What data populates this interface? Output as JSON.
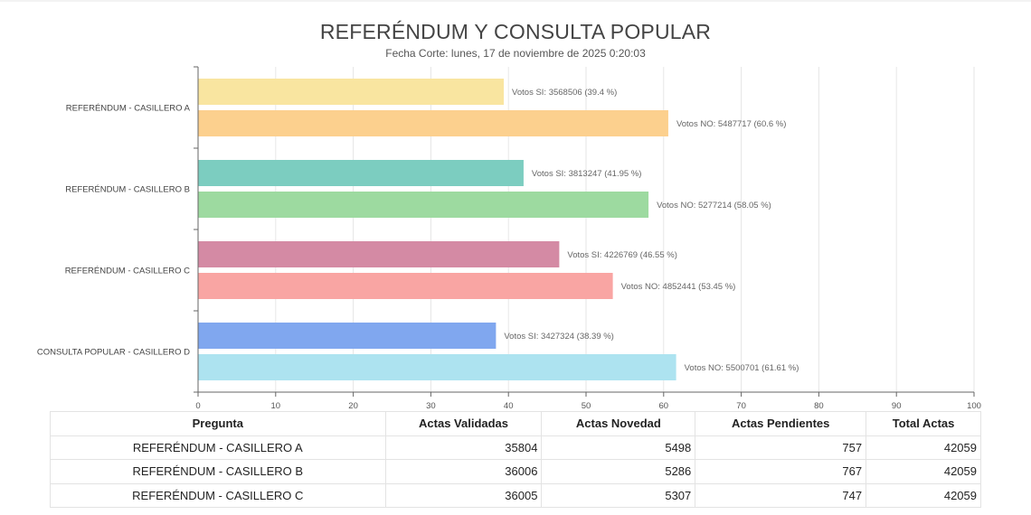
{
  "title": "REFERÉNDUM Y CONSULTA POPULAR",
  "subtitle": "Fecha Corte: lunes, 17 de noviembre de 2025 0:20:03",
  "colors": {
    "si": [
      "#f9e5a0",
      "#7ccdc0",
      "#d48aa4",
      "#80a7ef"
    ],
    "no": [
      "#fcd08e",
      "#9ddaa0",
      "#f9a5a3",
      "#ade3f0"
    ],
    "grid": "#e6e6e6",
    "axis": "#666666",
    "label": "#666666"
  },
  "chart_data": {
    "type": "bar",
    "orientation": "horizontal",
    "categories": [
      "REFERÉNDUM - CASILLERO A",
      "REFERÉNDUM - CASILLERO B",
      "REFERÉNDUM - CASILLERO C",
      "CONSULTA POPULAR - CASILLERO D"
    ],
    "series": [
      {
        "values": [
          39.4,
          41.95,
          46.55,
          38.39
        ]
      },
      {
        "values": [
          60.6,
          58.05,
          53.45,
          61.61
        ]
      }
    ],
    "data_labels": [
      [
        "Votos SI: 3568506 (39.4 %)",
        "Votos NO: 5487717 (60.6 %)"
      ],
      [
        "Votos SI: 3813247 (41.95 %)",
        "Votos NO: 5277214 (58.05 %)"
      ],
      [
        "Votos SI: 4226769 (46.55 %)",
        "Votos NO: 4852441 (53.45 %)"
      ],
      [
        "Votos SI: 3427324 (38.39 %)",
        "Votos NO: 5500701 (61.61 %)"
      ]
    ],
    "xlim": [
      0,
      100
    ],
    "xticks": [
      0,
      10,
      20,
      30,
      40,
      50,
      60,
      70,
      80,
      90,
      100
    ],
    "grid": true,
    "legend": "none"
  },
  "table": {
    "headers": [
      "Pregunta",
      "Actas Validadas",
      "Actas Novedad",
      "Actas Pendientes",
      "Total Actas"
    ],
    "rows": [
      [
        "REFERÉNDUM - CASILLERO A",
        "35804",
        "5498",
        "757",
        "42059"
      ],
      [
        "REFERÉNDUM - CASILLERO B",
        "36006",
        "5286",
        "767",
        "42059"
      ],
      [
        "REFERÉNDUM - CASILLERO C",
        "36005",
        "5307",
        "747",
        "42059"
      ]
    ]
  }
}
